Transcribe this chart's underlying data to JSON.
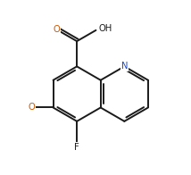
{
  "bg_color": "#ffffff",
  "bond_color": "#1a1a1a",
  "N_color": "#1a4acc",
  "O_color": "#cc5500",
  "bond_lw": 1.4,
  "fig_w": 2.14,
  "fig_h": 1.96,
  "dpi": 100,
  "xlim": [
    -2.8,
    2.6
  ],
  "ylim": [
    -2.2,
    2.6
  ]
}
